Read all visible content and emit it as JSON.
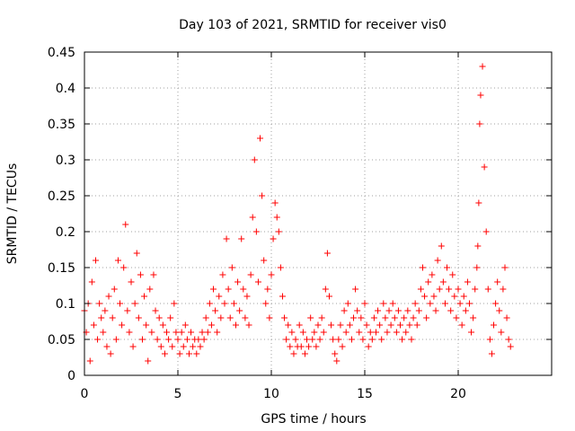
{
  "chart_data": {
    "type": "scatter",
    "title": "Day 103 of 2021, SRMTID for receiver vis0",
    "xlabel": "GPS time / hours",
    "ylabel": "SRMTID / TECUs",
    "xlim": [
      0,
      25
    ],
    "ylim": [
      0,
      0.45
    ],
    "x_ticks": [
      0,
      5,
      10,
      15,
      20
    ],
    "x_tick_labels": [
      "0",
      "5",
      "10",
      "15",
      "20"
    ],
    "y_ticks": [
      0,
      0.05,
      0.1,
      0.15,
      0.2,
      0.25,
      0.3,
      0.35,
      0.4,
      0.45
    ],
    "y_tick_labels": [
      "0",
      "0.05",
      "0.1",
      "0.15",
      "0.2",
      "0.25",
      "0.3",
      "0.35",
      "0.4",
      "0.45"
    ],
    "grid": true,
    "marker": "plus",
    "color": "#ff0000",
    "series": [
      {
        "name": "SRMTID",
        "x": [
          0.0,
          0.1,
          0.2,
          0.3,
          0.4,
          0.5,
          0.6,
          0.7,
          0.8,
          0.9,
          1.0,
          1.1,
          1.2,
          1.3,
          1.4,
          1.5,
          1.6,
          1.7,
          1.8,
          1.9,
          2.0,
          2.1,
          2.2,
          2.3,
          2.4,
          2.5,
          2.6,
          2.7,
          2.8,
          2.9,
          3.0,
          3.1,
          3.2,
          3.3,
          3.4,
          3.5,
          3.6,
          3.7,
          3.8,
          3.9,
          4.0,
          4.1,
          4.2,
          4.3,
          4.4,
          4.5,
          4.6,
          4.7,
          4.8,
          4.9,
          5.0,
          5.1,
          5.2,
          5.3,
          5.4,
          5.5,
          5.6,
          5.7,
          5.8,
          5.9,
          6.0,
          6.1,
          6.2,
          6.3,
          6.4,
          6.5,
          6.6,
          6.7,
          6.8,
          6.9,
          7.0,
          7.1,
          7.2,
          7.3,
          7.4,
          7.5,
          7.6,
          7.7,
          7.8,
          7.9,
          8.0,
          8.1,
          8.2,
          8.3,
          8.4,
          8.5,
          8.6,
          8.7,
          8.8,
          8.9,
          9.0,
          9.1,
          9.2,
          9.3,
          9.4,
          9.5,
          9.6,
          9.7,
          9.8,
          9.9,
          10.0,
          10.1,
          10.2,
          10.3,
          10.4,
          10.5,
          10.6,
          10.7,
          10.8,
          10.9,
          11.0,
          11.1,
          11.2,
          11.3,
          11.4,
          11.5,
          11.6,
          11.7,
          11.8,
          11.9,
          12.0,
          12.1,
          12.2,
          12.3,
          12.4,
          12.5,
          12.6,
          12.7,
          12.8,
          12.9,
          13.0,
          13.1,
          13.2,
          13.3,
          13.4,
          13.5,
          13.6,
          13.7,
          13.8,
          13.9,
          14.0,
          14.1,
          14.2,
          14.3,
          14.4,
          14.5,
          14.6,
          14.7,
          14.8,
          14.9,
          15.0,
          15.1,
          15.2,
          15.3,
          15.4,
          15.5,
          15.6,
          15.7,
          15.8,
          15.9,
          16.0,
          16.1,
          16.2,
          16.3,
          16.4,
          16.5,
          16.6,
          16.7,
          16.8,
          16.9,
          17.0,
          17.1,
          17.2,
          17.3,
          17.4,
          17.5,
          17.6,
          17.7,
          17.8,
          17.9,
          18.0,
          18.1,
          18.2,
          18.3,
          18.4,
          18.5,
          18.6,
          18.7,
          18.8,
          18.9,
          19.0,
          19.1,
          19.2,
          19.3,
          19.4,
          19.5,
          19.6,
          19.7,
          19.8,
          19.9,
          20.0,
          20.1,
          20.2,
          20.3,
          20.4,
          20.5,
          20.6,
          20.7,
          20.8,
          20.9,
          21.0,
          21.05,
          21.1,
          21.15,
          21.2,
          21.3,
          21.4,
          21.5,
          21.6,
          21.7,
          21.8,
          21.9,
          22.0,
          22.1,
          22.2,
          22.3,
          22.4,
          22.5,
          22.6,
          22.7,
          22.8
        ],
        "y": [
          0.09,
          0.06,
          0.1,
          0.02,
          0.13,
          0.07,
          0.16,
          0.05,
          0.1,
          0.08,
          0.06,
          0.09,
          0.04,
          0.11,
          0.03,
          0.08,
          0.12,
          0.05,
          0.16,
          0.1,
          0.07,
          0.15,
          0.21,
          0.09,
          0.06,
          0.13,
          0.04,
          0.1,
          0.17,
          0.08,
          0.14,
          0.05,
          0.11,
          0.07,
          0.02,
          0.12,
          0.06,
          0.14,
          0.09,
          0.05,
          0.08,
          0.04,
          0.07,
          0.03,
          0.06,
          0.05,
          0.08,
          0.04,
          0.1,
          0.06,
          0.05,
          0.03,
          0.06,
          0.04,
          0.07,
          0.05,
          0.03,
          0.06,
          0.04,
          0.05,
          0.03,
          0.05,
          0.04,
          0.06,
          0.05,
          0.08,
          0.06,
          0.1,
          0.07,
          0.12,
          0.09,
          0.06,
          0.11,
          0.08,
          0.14,
          0.1,
          0.19,
          0.12,
          0.08,
          0.15,
          0.1,
          0.07,
          0.13,
          0.09,
          0.19,
          0.12,
          0.08,
          0.11,
          0.07,
          0.14,
          0.22,
          0.3,
          0.2,
          0.13,
          0.33,
          0.25,
          0.16,
          0.1,
          0.12,
          0.08,
          0.14,
          0.19,
          0.24,
          0.22,
          0.2,
          0.15,
          0.11,
          0.08,
          0.05,
          0.07,
          0.04,
          0.06,
          0.03,
          0.05,
          0.04,
          0.07,
          0.04,
          0.06,
          0.03,
          0.05,
          0.04,
          0.08,
          0.05,
          0.06,
          0.04,
          0.07,
          0.05,
          0.08,
          0.06,
          0.12,
          0.17,
          0.11,
          0.07,
          0.05,
          0.03,
          0.02,
          0.05,
          0.07,
          0.04,
          0.09,
          0.06,
          0.1,
          0.07,
          0.05,
          0.08,
          0.12,
          0.09,
          0.06,
          0.08,
          0.05,
          0.1,
          0.07,
          0.04,
          0.06,
          0.05,
          0.08,
          0.06,
          0.09,
          0.07,
          0.05,
          0.1,
          0.08,
          0.06,
          0.09,
          0.07,
          0.1,
          0.08,
          0.06,
          0.09,
          0.07,
          0.05,
          0.08,
          0.06,
          0.09,
          0.07,
          0.05,
          0.08,
          0.1,
          0.07,
          0.09,
          0.12,
          0.15,
          0.11,
          0.08,
          0.13,
          0.1,
          0.14,
          0.11,
          0.09,
          0.16,
          0.12,
          0.18,
          0.13,
          0.1,
          0.15,
          0.12,
          0.09,
          0.14,
          0.11,
          0.08,
          0.12,
          0.1,
          0.07,
          0.11,
          0.09,
          0.13,
          0.1,
          0.06,
          0.08,
          0.12,
          0.15,
          0.18,
          0.24,
          0.35,
          0.39,
          0.43,
          0.29,
          0.2,
          0.12,
          0.05,
          0.03,
          0.07,
          0.1,
          0.13,
          0.09,
          0.06,
          0.12,
          0.15,
          0.08,
          0.05,
          0.04
        ]
      }
    ]
  }
}
